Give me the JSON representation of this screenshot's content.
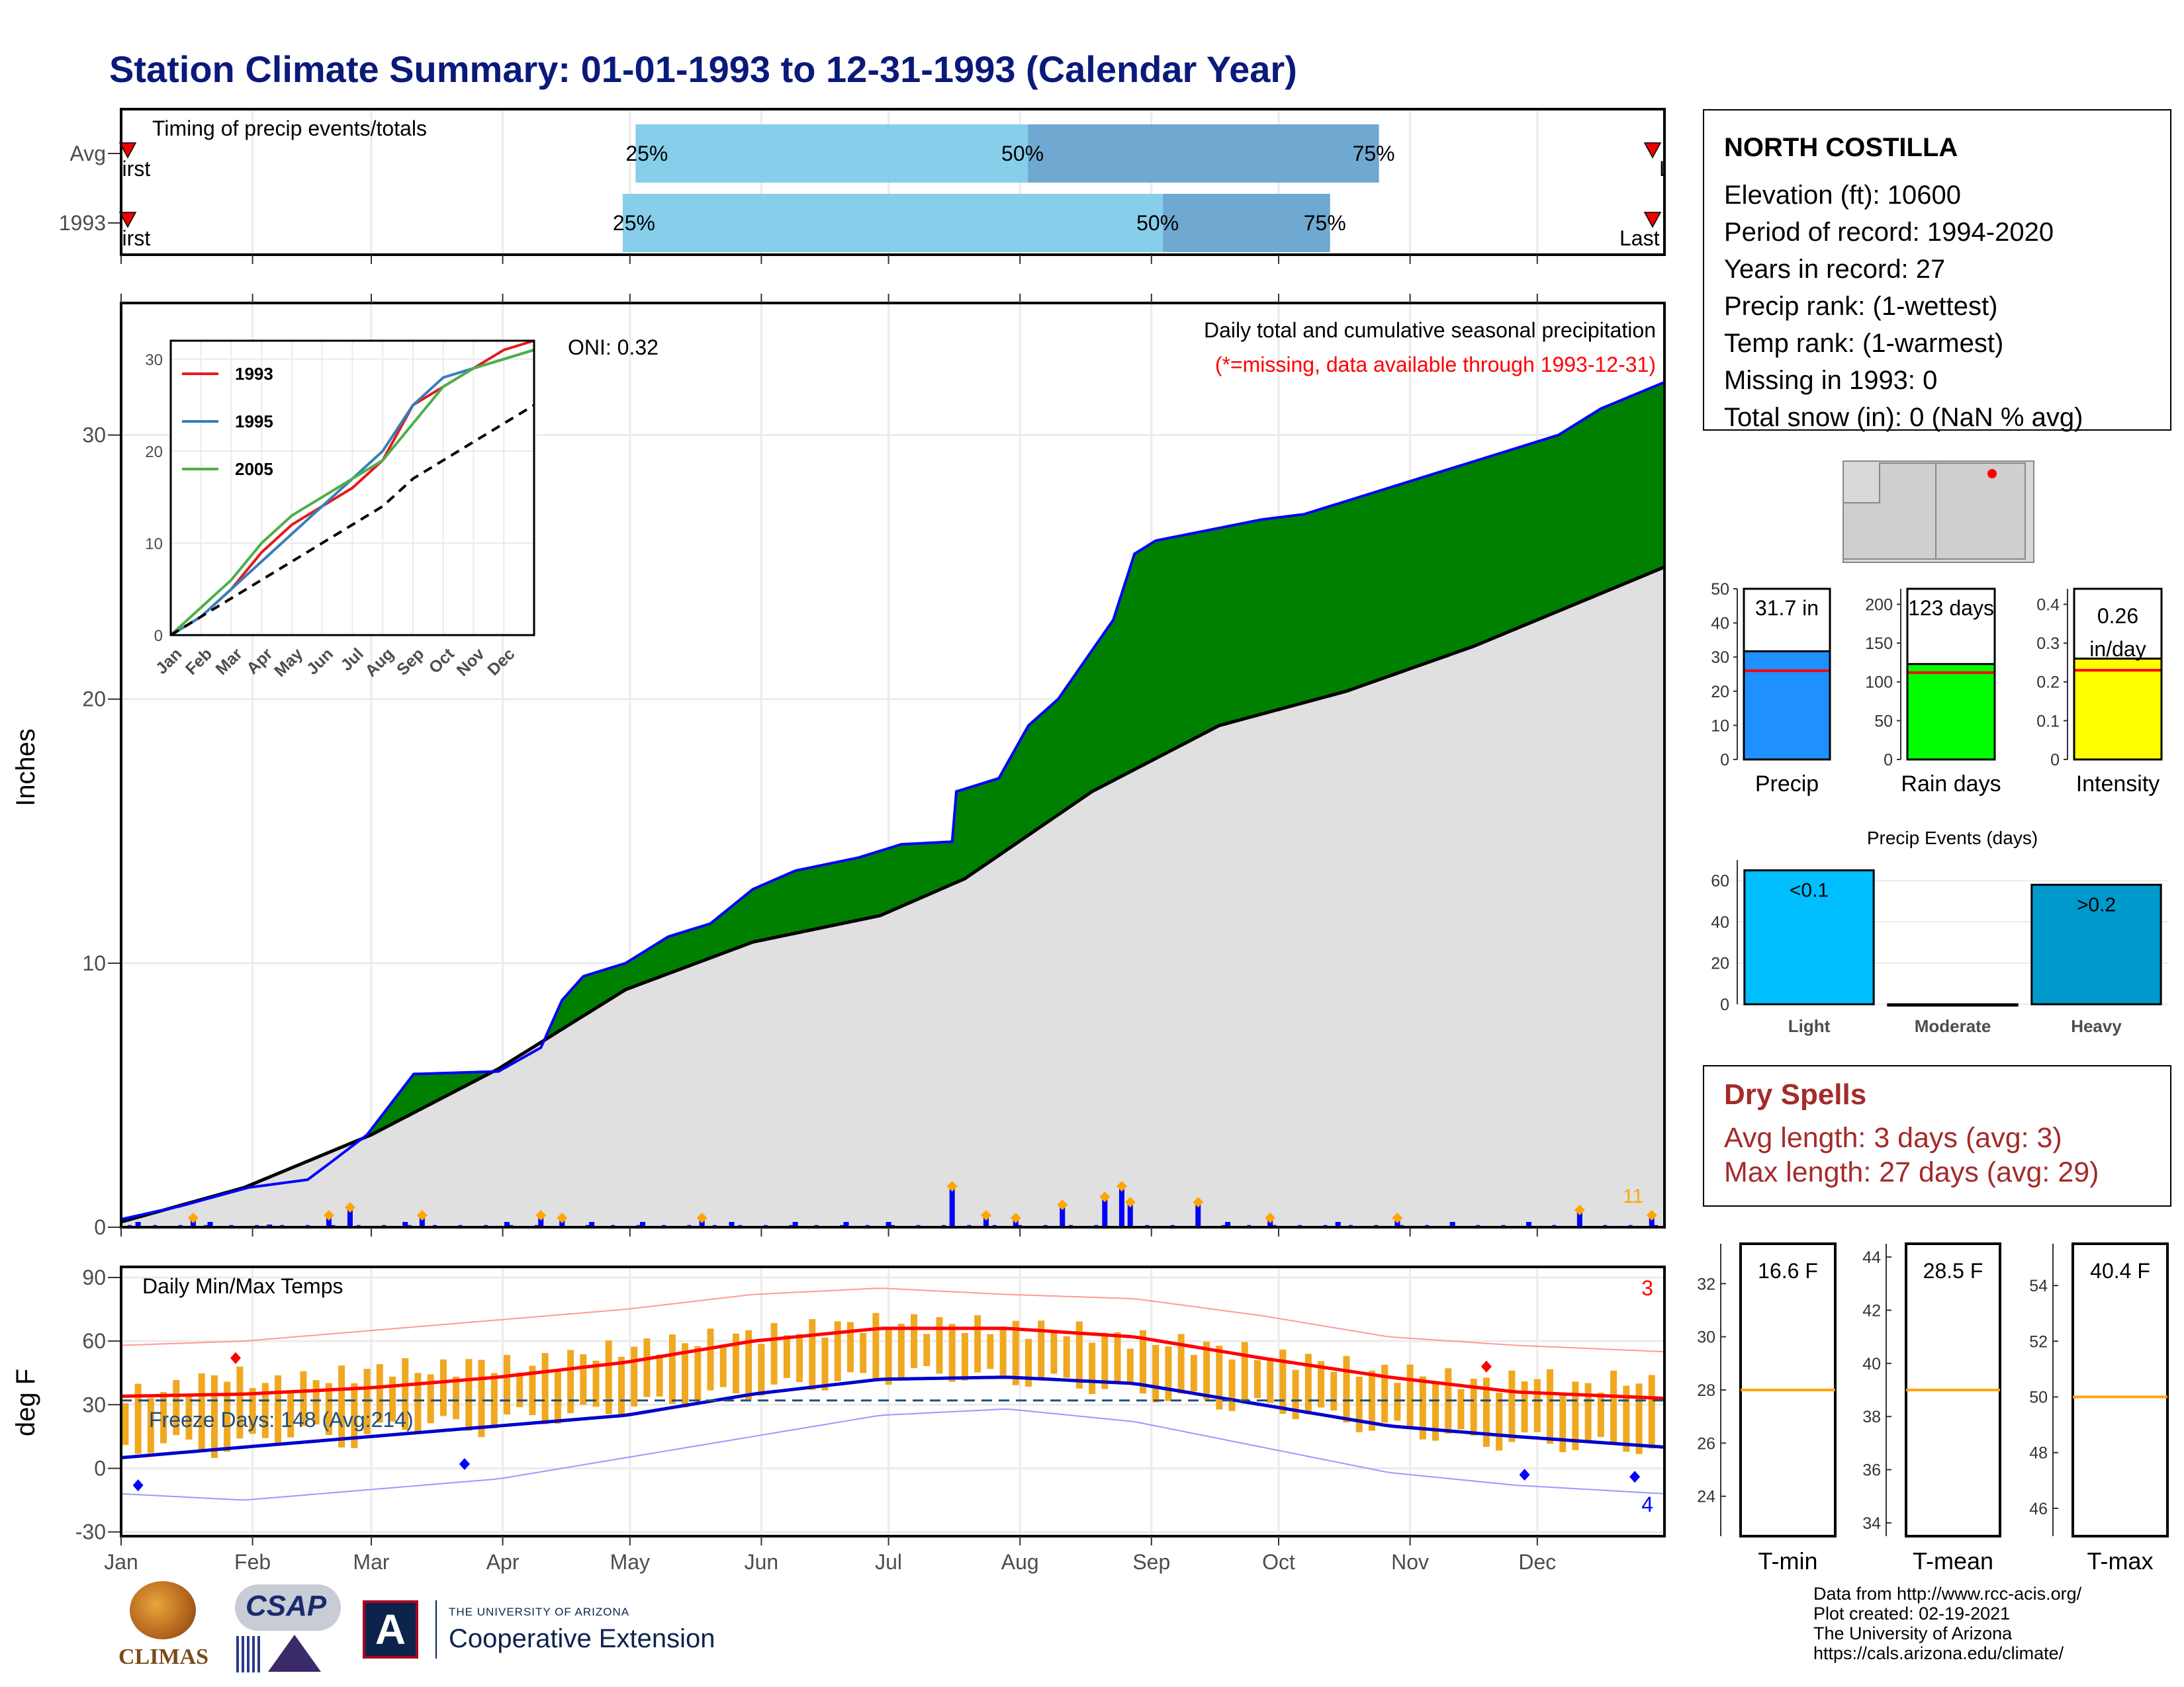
{
  "page": {
    "title": "Station Climate Summary: 01-01-1993 to 12-31-1993 (Calendar Year)",
    "colors": {
      "title": "#0a1a7a",
      "cum_current": "#008000",
      "cum_avg": "#e0e0e0",
      "daily_bar": "#0000ff",
      "tmax": "#ff0000",
      "tmin": "#0000cd",
      "temp_bar": "#f0a820",
      "dry_spell": "#a52a2a"
    }
  },
  "timing_panel": {
    "label": "Timing of precip events/totals",
    "rows": [
      {
        "label": "Avg",
        "p25_month": 4.0,
        "p50_month": 7.05,
        "p75_month": 9.78,
        "first_text": "First",
        "last_text": "Last",
        "text_25": "25%",
        "text_50": "50%",
        "text_75": "75%"
      },
      {
        "label": "1993",
        "p25_month": 3.9,
        "p50_month": 8.1,
        "p75_month": 9.4,
        "first_text": "First",
        "last_text": "Last",
        "text_25": "25%",
        "text_50": "50%",
        "text_75": "75%"
      }
    ]
  },
  "station": {
    "name": "NORTH COSTILLA",
    "lines": [
      "Elevation (ft): 10600",
      "Period of record: 1994-2020",
      "Years in record: 27",
      "Precip rank:  (1-wettest)",
      "Temp rank:  (1-warmest)",
      "Missing in 1993: 0",
      "Total snow (in): 0 (NaN % avg)"
    ]
  },
  "summary_bars": [
    {
      "label": "Precip",
      "value_text": "31.7 in",
      "value": 31.7,
      "avg": 26,
      "ymax": 50,
      "ticks": [
        0,
        10,
        20,
        30,
        40,
        50
      ],
      "color": "#1e90ff"
    },
    {
      "label": "Rain days",
      "value_text": "123 days",
      "value": 123,
      "avg": 112,
      "ymax": 220,
      "ticks": [
        0,
        50,
        100,
        150,
        200
      ],
      "color": "#00ff00"
    },
    {
      "label": "Intensity",
      "value_text": "0.26 in/day",
      "value": 0.26,
      "avg": 0.23,
      "ymax": 0.44,
      "ticks": [
        0.0,
        0.1,
        0.2,
        0.3,
        0.4
      ],
      "color": "#ffff00"
    }
  ],
  "precip_events": {
    "title": "Precip Events (days)",
    "categories": [
      "Light",
      "Moderate",
      "Heavy"
    ],
    "values": [
      65,
      0,
      58
    ],
    "bar_labels": [
      "<0.1",
      "",
      ">0.2"
    ],
    "colors": [
      "#00bfff",
      "#0090c8",
      "#0099cc"
    ],
    "ticks": [
      0,
      20,
      40,
      60
    ]
  },
  "dry_spells": {
    "title": "Dry Spells",
    "avg_line": "Avg length: 3 days (avg: 3)",
    "max_line": "Max length: 27 days (avg: 29)"
  },
  "temp_summary": [
    {
      "label": "T-min",
      "value_text": "16.6 F",
      "avg": 28,
      "ylim": [
        22.5,
        33.5
      ],
      "ticks": [
        24,
        26,
        28,
        30,
        32
      ]
    },
    {
      "label": "T-mean",
      "value_text": "28.5 F",
      "avg": 39,
      "ylim": [
        33.5,
        44.5
      ],
      "ticks": [
        34,
        36,
        38,
        40,
        42,
        44
      ]
    },
    {
      "label": "T-max",
      "value_text": "40.4 F",
      "avg": 50,
      "ylim": [
        45,
        55.5
      ],
      "ticks": [
        46,
        48,
        50,
        52,
        54
      ]
    }
  ],
  "chart_data": {
    "type": "area",
    "ylabel": "Inches",
    "annotation_title": "Daily total and cumulative seasonal precipitation",
    "annotation_missing": "(*=missing, data available through 1993-12-31)",
    "oni_text": "ONI: 0.32",
    "count_label": "11",
    "ylim": [
      0,
      35
    ],
    "yticks": [
      0,
      10,
      20,
      30
    ],
    "months": [
      "Jan",
      "Feb",
      "Mar",
      "Apr",
      "May",
      "Jun",
      "Jul",
      "Aug",
      "Sep",
      "Oct",
      "Nov",
      "Dec"
    ],
    "cumulative_1993": {
      "day": [
        1,
        15,
        31,
        45,
        50,
        59,
        70,
        90,
        100,
        105,
        110,
        120,
        130,
        140,
        150,
        160,
        175,
        185,
        197,
        198,
        208,
        215,
        222,
        235,
        240,
        245,
        270,
        280,
        300,
        320,
        340,
        350,
        365
      ],
      "inches": [
        0.3,
        0.8,
        1.5,
        1.8,
        2.4,
        3.5,
        5.8,
        5.9,
        6.8,
        8.6,
        9.5,
        10.0,
        11.0,
        11.5,
        12.8,
        13.5,
        14.0,
        14.5,
        14.6,
        16.5,
        17.0,
        19.0,
        20.0,
        23.0,
        25.5,
        26.0,
        26.8,
        27.0,
        28.0,
        29.0,
        30.0,
        31.0,
        32.0
      ]
    },
    "cumulative_avg": {
      "day": [
        1,
        30,
        60,
        90,
        120,
        150,
        180,
        200,
        230,
        260,
        290,
        320,
        365
      ],
      "inches": [
        0.2,
        1.5,
        3.5,
        6.0,
        9.0,
        10.8,
        11.8,
        13.2,
        16.5,
        19.0,
        20.3,
        22.0,
        25.0
      ]
    },
    "daily_bars": {
      "day": [
        5,
        18,
        22,
        36,
        50,
        55,
        68,
        72,
        92,
        100,
        105,
        112,
        124,
        138,
        145,
        160,
        172,
        182,
        197,
        205,
        212,
        223,
        233,
        237,
        239,
        255,
        262,
        272,
        288,
        302,
        315,
        333,
        345,
        362
      ],
      "inches": [
        0.2,
        0.3,
        0.2,
        0.1,
        0.4,
        0.7,
        0.2,
        0.4,
        0.2,
        0.4,
        0.3,
        0.2,
        0.2,
        0.3,
        0.2,
        0.2,
        0.2,
        0.2,
        1.5,
        0.4,
        0.3,
        0.8,
        1.1,
        1.5,
        0.9,
        0.9,
        0.2,
        0.3,
        0.2,
        0.3,
        0.2,
        0.2,
        0.6,
        0.4
      ]
    },
    "inset": {
      "legend": [
        "1993",
        "1995",
        "2005"
      ],
      "colors": [
        "#e41a1c",
        "#377eb8",
        "#4daf4a"
      ],
      "yticks": [
        0,
        10,
        20,
        30
      ],
      "ylim": [
        0,
        32
      ],
      "series": [
        {
          "name": "1993",
          "x": [
            0,
            1,
            2,
            3,
            4,
            5,
            6,
            7,
            8,
            9,
            10,
            11,
            12
          ],
          "y": [
            0,
            2,
            5,
            9,
            12,
            14,
            16,
            19,
            25,
            27,
            29,
            31,
            32
          ]
        },
        {
          "name": "1995",
          "x": [
            0,
            1,
            2,
            3,
            4,
            5,
            6,
            7,
            8,
            9,
            10,
            11,
            12
          ],
          "y": [
            0,
            2,
            5,
            8,
            11,
            14,
            17,
            20,
            25,
            28,
            29,
            30,
            31
          ]
        },
        {
          "name": "2005",
          "x": [
            0,
            1,
            2,
            3,
            4,
            5,
            6,
            7,
            8,
            9,
            10,
            11,
            12
          ],
          "y": [
            0,
            3,
            6,
            10,
            13,
            15,
            17,
            19,
            23,
            27,
            29,
            30,
            31
          ]
        },
        {
          "name": "avg",
          "x": [
            0,
            1,
            2,
            3,
            4,
            5,
            6,
            7,
            8,
            9,
            10,
            11,
            12
          ],
          "y": [
            0,
            2,
            4,
            6,
            8,
            10,
            12,
            14,
            17,
            19,
            21,
            23,
            25
          ]
        }
      ]
    },
    "temps": {
      "title": "Daily Min/Max Temps",
      "ylabel": "deg F",
      "ylim": [
        -32,
        95
      ],
      "yticks": [
        -30,
        0,
        30,
        60,
        90
      ],
      "freeze_text": "Freeze Days: 148 (Avg:214)",
      "freeze_line": 32,
      "record_high_count": "3",
      "record_low_count": "4",
      "avg_max": {
        "day": [
          1,
          30,
          60,
          90,
          120,
          150,
          180,
          210,
          240,
          270,
          300,
          330,
          365
        ],
        "f": [
          34,
          35,
          38,
          43,
          50,
          60,
          66,
          66,
          62,
          52,
          43,
          36,
          33
        ]
      },
      "avg_min": {
        "day": [
          1,
          30,
          60,
          90,
          120,
          150,
          180,
          210,
          240,
          270,
          300,
          330,
          365
        ],
        "f": [
          5,
          10,
          15,
          20,
          25,
          35,
          42,
          43,
          40,
          30,
          20,
          15,
          10
        ]
      },
      "record_max": {
        "day": [
          1,
          30,
          60,
          90,
          120,
          150,
          180,
          210,
          240,
          270,
          300,
          330,
          365
        ],
        "f": [
          58,
          60,
          65,
          70,
          75,
          82,
          85,
          82,
          80,
          72,
          62,
          58,
          55
        ]
      },
      "record_min": {
        "day": [
          1,
          30,
          60,
          90,
          120,
          150,
          180,
          210,
          240,
          270,
          300,
          330,
          365
        ],
        "f": [
          -12,
          -15,
          -10,
          -5,
          5,
          15,
          25,
          28,
          22,
          10,
          -2,
          -8,
          -12
        ]
      },
      "daily_range": {
        "day": [
          5,
          15,
          25,
          35,
          45,
          55,
          65,
          75,
          85,
          95,
          105,
          115,
          125,
          135,
          145,
          155,
          165,
          175,
          185,
          195,
          205,
          215,
          225,
          235,
          245,
          255,
          265,
          275,
          285,
          295,
          305,
          315,
          325,
          335,
          345,
          355,
          362
        ],
        "low": [
          10,
          12,
          8,
          15,
          18,
          12,
          20,
          22,
          18,
          25,
          24,
          28,
          30,
          33,
          35,
          38,
          40,
          42,
          44,
          45,
          43,
          42,
          40,
          38,
          35,
          32,
          30,
          28,
          25,
          20,
          18,
          15,
          12,
          14,
          10,
          12,
          8
        ],
        "high": [
          35,
          38,
          45,
          40,
          42,
          44,
          48,
          46,
          50,
          48,
          52,
          55,
          58,
          60,
          62,
          64,
          66,
          68,
          69,
          68,
          67,
          66,
          65,
          62,
          60,
          58,
          55,
          52,
          50,
          46,
          45,
          42,
          40,
          44,
          38,
          42,
          40
        ]
      }
    }
  },
  "footer": {
    "lines": [
      "Data from http://www.rcc-acis.org/",
      "Plot created: 02-19-2021",
      "The University of Arizona",
      "https://cals.arizona.edu/climate/"
    ],
    "logo_climas": "CLIMAS",
    "logo_csap": "CSAP",
    "ua_line1": "THE UNIVERSITY OF ARIZONA",
    "ua_line2": "Cooperative Extension"
  }
}
